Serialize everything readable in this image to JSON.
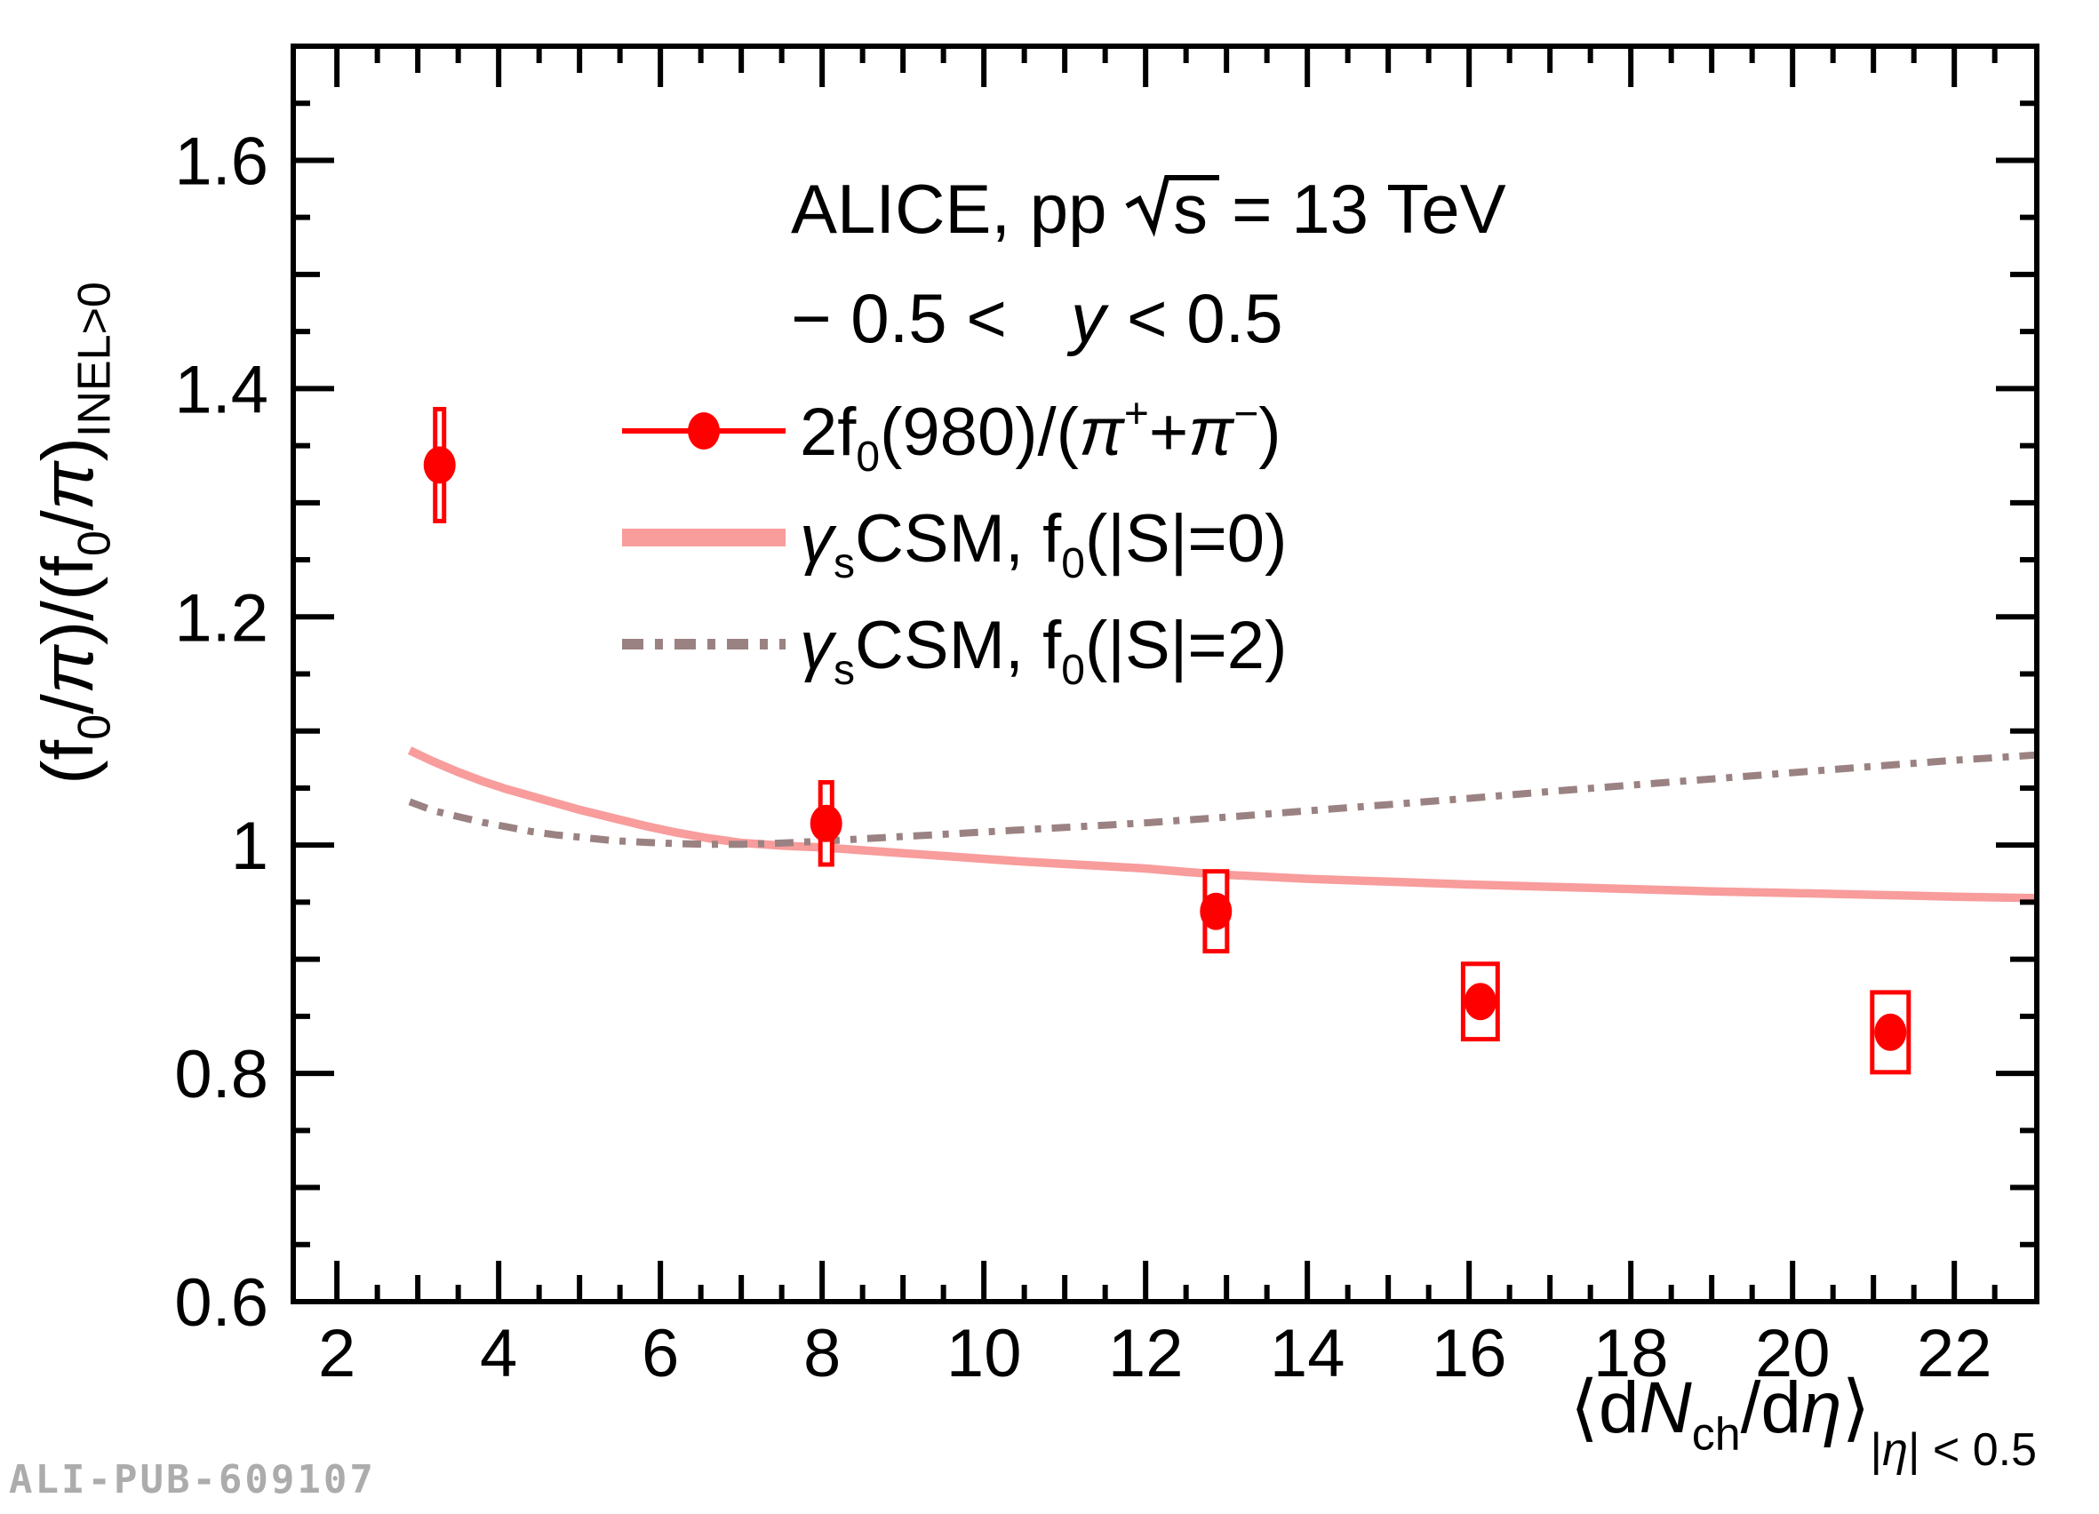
{
  "figure": {
    "watermark": "ALI-PUB-609107"
  },
  "colors": {
    "data_red": "#ff0000",
    "csm_s0_pink": "#f89c9c",
    "csm_s2_mauve": "#9b8282",
    "axis_black": "#000000",
    "watermark_gray": "#acacac",
    "box_fill": "#ffffff"
  },
  "chart_data": {
    "type": "scatter",
    "title": "",
    "header": {
      "alice_prefix": "ALICE, pp",
      "sqrt_arg": "s",
      "energy": "= 13 TeV",
      "rapidity_pre": "− 0.5 < ",
      "rapidity_var": "y",
      "rapidity_post": "< 0.5"
    },
    "xlabel": {
      "plain": "⟨dN_ch/dη⟩_|η| < 0.5",
      "rich": [
        {
          "t": "⟨d"
        },
        {
          "t": "N",
          "i": 1
        },
        {
          "t": "ch",
          "sub": 1
        },
        {
          "t": "/d"
        },
        {
          "t": "η",
          "i": 1
        },
        {
          "t": "⟩"
        },
        {
          "t": "|",
          "sub2": 1
        },
        {
          "t": "η",
          "sub2": 1,
          "i": 1
        },
        {
          "t": "| < 0.5",
          "sub2": 1
        }
      ]
    },
    "ylabel": {
      "plain": "(f_0/π)/(f_0/π)_INEL>0",
      "rich": [
        {
          "t": "(f"
        },
        {
          "t": "0",
          "sub": 1
        },
        {
          "t": "/"
        },
        {
          "t": "π",
          "i": 1
        },
        {
          "t": ")/(f"
        },
        {
          "t": "0",
          "sub": 1
        },
        {
          "t": "/"
        },
        {
          "t": "π",
          "i": 1
        },
        {
          "t": ")"
        },
        {
          "t": "INEL>0",
          "sub": 1
        }
      ]
    },
    "xlim": [
      1.46,
      23.02
    ],
    "ylim": [
      0.6,
      1.7
    ],
    "x_ticks": {
      "major_step": 2,
      "medium_step": 1,
      "minor_step": 0.5,
      "label_values": [
        2,
        4,
        6,
        8,
        10,
        12,
        14,
        16,
        18,
        20,
        22
      ]
    },
    "y_ticks": {
      "major_step": 0.2,
      "medium_step": 0.1,
      "minor_step": 0.05,
      "label_values": [
        0.6,
        0.8,
        1,
        1.2,
        1.4,
        1.6
      ]
    },
    "legend": {
      "entries": [
        {
          "style": "marker",
          "label": "2f0(980)/(π+ + π−)",
          "rich": [
            {
              "t": "2f"
            },
            {
              "t": "0",
              "sub": 1
            },
            {
              "t": "(980)/("
            },
            {
              "t": "π",
              "i": 1
            },
            {
              "t": "+",
              "sup": 1
            },
            {
              "t": "+"
            },
            {
              "t": "π",
              "i": 1
            },
            {
              "t": "−",
              "sup": 1
            },
            {
              "t": ")"
            }
          ]
        },
        {
          "style": "solid",
          "label": "γs CSM, f0(|S|=0)",
          "rich": [
            {
              "t": "γ",
              "i": 1
            },
            {
              "t": "s",
              "sub": 1
            },
            {
              "t": "CSM, f"
            },
            {
              "t": "0",
              "sub": 1
            },
            {
              "t": "(|S|=0)"
            }
          ]
        },
        {
          "style": "dashdot",
          "label": "γs CSM, f0(|S|=2)",
          "rich": [
            {
              "t": "γ",
              "i": 1
            },
            {
              "t": "s",
              "sub": 1
            },
            {
              "t": "CSM, f"
            },
            {
              "t": "0",
              "sub": 1
            },
            {
              "t": "(|S|=2)"
            }
          ]
        }
      ]
    },
    "series": [
      {
        "name": "2f0(980)/(π+ + π−)",
        "type": "scatter",
        "color": "#ff0000",
        "points": [
          {
            "x": 3.27,
            "y": 1.333,
            "ey": 0.049,
            "bw": 0.055
          },
          {
            "x": 8.05,
            "y": 1.019,
            "ey": 0.036,
            "bw": 0.072
          },
          {
            "x": 12.87,
            "y": 0.942,
            "ey": 0.035,
            "bw": 0.137
          },
          {
            "x": 16.14,
            "y": 0.863,
            "ey": 0.033,
            "bw": 0.214
          },
          {
            "x": 21.21,
            "y": 0.836,
            "ey": 0.035,
            "bw": 0.225
          }
        ]
      },
      {
        "name": "γs CSM, f0(|S|=0)",
        "type": "line",
        "dash": "solid",
        "color": "#f89c9c",
        "x": [
          2.9,
          3.2,
          3.5,
          3.8,
          4.1,
          4.4,
          4.7,
          5.0,
          5.4,
          5.8,
          6.2,
          6.6,
          7.0,
          7.5,
          8.0,
          8.5,
          9.0,
          9.5,
          10.0,
          10.5,
          11.0,
          11.5,
          12.0,
          12.5,
          13.0,
          14.0,
          15.0,
          16.0,
          17.0,
          18.0,
          19.0,
          20.0,
          21.0,
          22.0,
          23.02
        ],
        "y": [
          1.083,
          1.073,
          1.064,
          1.056,
          1.049,
          1.043,
          1.037,
          1.031,
          1.024,
          1.017,
          1.011,
          1.006,
          1.002,
          0.9995,
          0.998,
          0.9955,
          0.993,
          0.9905,
          0.988,
          0.9855,
          0.9835,
          0.9815,
          0.9795,
          0.9765,
          0.974,
          0.9705,
          0.968,
          0.9655,
          0.9635,
          0.9615,
          0.9595,
          0.958,
          0.9565,
          0.9548,
          0.9535
        ]
      },
      {
        "name": "γs CSM, f0(|S|=2)",
        "type": "line",
        "dash": "dashdot",
        "color": "#9b8282",
        "x": [
          2.9,
          3.2,
          3.5,
          3.8,
          4.1,
          4.4,
          4.7,
          5.0,
          5.4,
          5.8,
          6.2,
          6.6,
          7.0,
          7.5,
          8.0,
          8.5,
          9.0,
          9.5,
          10.0,
          10.5,
          11.0,
          11.5,
          12.0,
          12.5,
          13.0,
          14.0,
          15.0,
          16.0,
          17.0,
          18.0,
          19.0,
          20.0,
          21.0,
          22.0,
          23.02
        ],
        "y": [
          1.038,
          1.03,
          1.025,
          1.02,
          1.016,
          1.012,
          1.009,
          1.007,
          1.004,
          1.0025,
          1.0013,
          1.0007,
          1.0008,
          1.0018,
          1.0035,
          1.0055,
          1.0075,
          1.0095,
          1.0115,
          1.0135,
          1.0155,
          1.0175,
          1.0195,
          1.022,
          1.0245,
          1.03,
          1.0355,
          1.041,
          1.047,
          1.0525,
          1.058,
          1.0635,
          1.069,
          1.0743,
          1.079
        ]
      }
    ]
  }
}
